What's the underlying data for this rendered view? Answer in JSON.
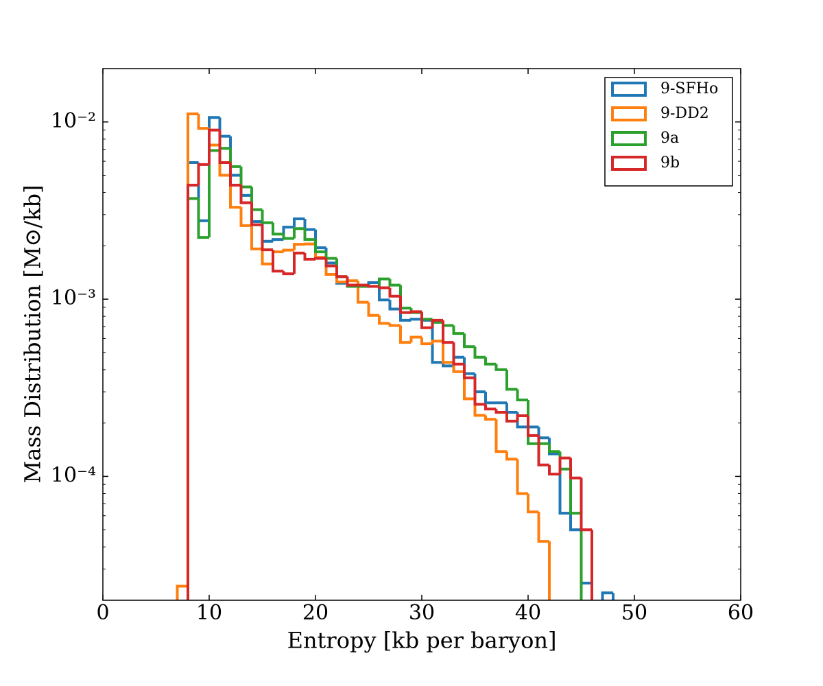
{
  "chart_data": {
    "type": "histogram",
    "histtype": "step",
    "xlabel": "Entropy [kb per baryon]",
    "ylabel": "Mass Distribution [M⊙/kb]",
    "xlim": [
      0,
      60
    ],
    "ylim": [
      2e-05,
      0.02
    ],
    "yscale": "log",
    "xticks": [
      0,
      10,
      20,
      30,
      40,
      50,
      60
    ],
    "yticks": [
      {
        "value": 0.0001,
        "label": "10⁻⁴"
      },
      {
        "value": 0.001,
        "label": "10⁻³"
      },
      {
        "value": 0.01,
        "label": "10⁻²"
      }
    ],
    "yticks_minor": [
      3e-05,
      4e-05,
      5e-05,
      6e-05,
      7e-05,
      8e-05,
      9e-05,
      0.0002,
      0.0003,
      0.0004,
      0.0005,
      0.0006,
      0.0007,
      0.0008,
      0.0009,
      0.002,
      0.003,
      0.004,
      0.005,
      0.006,
      0.007,
      0.008,
      0.009
    ],
    "legend": "upper right",
    "bins": [
      7,
      8,
      9,
      10,
      11,
      12,
      13,
      14,
      15,
      16,
      17,
      18,
      19,
      20,
      21,
      22,
      23,
      24,
      25,
      26,
      27,
      28,
      29,
      30,
      31,
      32,
      33,
      34,
      35,
      36,
      37,
      38,
      39,
      40,
      41,
      42,
      43,
      44,
      45,
      46,
      47,
      48,
      49
    ],
    "series": [
      {
        "name": "9-SFHo",
        "color": "#1f77b4",
        "values": [
          0,
          0.0059,
          0.00277,
          0.0106,
          0.0083,
          0.005,
          0.00385,
          0.00274,
          0.00212,
          0.00217,
          0.00255,
          0.00284,
          0.00247,
          0.00195,
          0.0016,
          0.00123,
          0.0012,
          0.0012,
          0.00124,
          0.00099,
          0.00088,
          0.00076,
          0.00077,
          0.00076,
          0.00044,
          0.00042,
          0.00047,
          0.00038,
          0.0003,
          0.00026,
          0.00026,
          0.00023,
          0.00019,
          0.00019,
          0.000165,
          0.000134,
          6.2e-05,
          5e-05,
          2.5e-05,
          0,
          2.2e-05,
          0
        ]
      },
      {
        "name": "9-DD2",
        "color": "#ff7f0e",
        "values": [
          2.4e-05,
          0.0111,
          0.0092,
          0.0074,
          0.005,
          0.0033,
          0.0026,
          0.00192,
          0.00158,
          0.00185,
          0.00189,
          0.00204,
          0.00205,
          0.00172,
          0.00138,
          0.00125,
          0.00127,
          0.00096,
          0.00081,
          0.00073,
          0.00071,
          0.00057,
          0.00061,
          0.00056,
          0.00058,
          0.00044,
          0.00039,
          0.000274,
          0.000221,
          0.00021,
          0.000138,
          0.000125,
          8e-05,
          6.3e-05,
          4.3e-05,
          0,
          0,
          0,
          0,
          0,
          0,
          0
        ]
      },
      {
        "name": "9a",
        "color": "#2ca02c",
        "values": [
          0,
          0.0037,
          0.00223,
          0.0069,
          0.0071,
          0.0056,
          0.0043,
          0.0032,
          0.0027,
          0.00233,
          0.0022,
          0.0025,
          0.00217,
          0.00185,
          0.0017,
          0.00134,
          0.00118,
          0.00118,
          0.00118,
          0.0013,
          0.0012,
          0.00089,
          0.00084,
          0.00077,
          0.00074,
          0.00071,
          0.00064,
          0.00054,
          0.00047,
          0.00043,
          0.0004,
          0.00031,
          0.00027,
          0.000153,
          0.000153,
          0.000138,
          0.00011,
          6.2e-05,
          0,
          0,
          0,
          0
        ]
      },
      {
        "name": "9b",
        "color": "#d62728",
        "values": [
          0,
          0.0044,
          0.00575,
          0.009,
          0.0059,
          0.0044,
          0.0035,
          0.00263,
          0.0019,
          0.00144,
          0.00139,
          0.00182,
          0.00168,
          0.0017,
          0.00154,
          0.00134,
          0.0012,
          0.0012,
          0.00118,
          0.00116,
          0.00104,
          0.00084,
          0.00085,
          0.00069,
          0.00076,
          0.00057,
          0.00043,
          0.00036,
          0.000255,
          0.00024,
          0.00023,
          0.000205,
          0.00022,
          0.00017,
          0.000116,
          0.000103,
          0.000127,
          9.8e-05,
          5e-05,
          0,
          0,
          0
        ]
      }
    ]
  }
}
